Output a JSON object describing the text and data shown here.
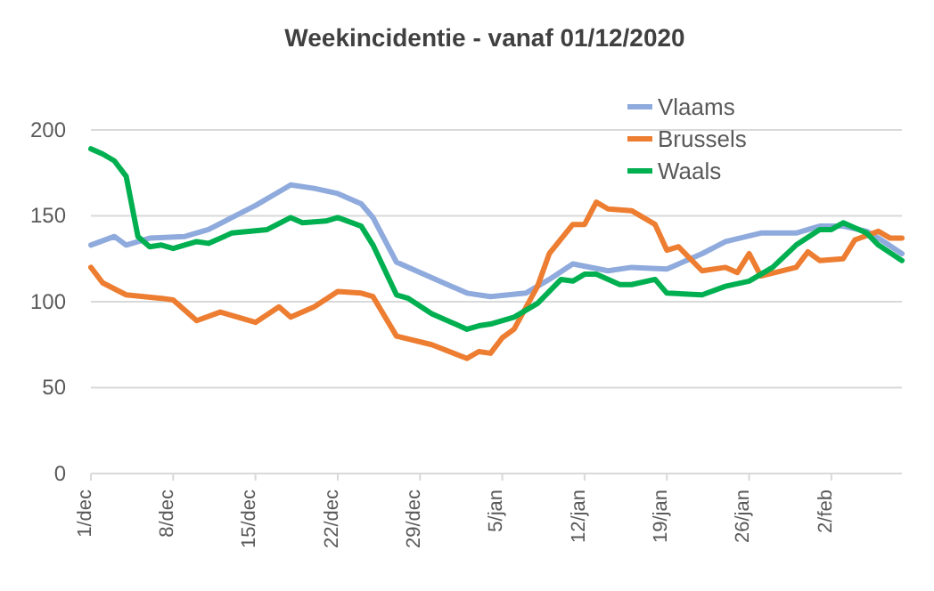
{
  "chart_data": {
    "type": "line",
    "title": "Weekincidentie  - vanaf 01/12/2020",
    "xlim": [
      "2020-12-01",
      "2021-02-08"
    ],
    "xticks": [
      {
        "value": "2020-12-01",
        "label": "1/dec"
      },
      {
        "value": "2020-12-08",
        "label": "8/dec"
      },
      {
        "value": "2020-12-15",
        "label": "15/dec"
      },
      {
        "value": "2020-12-22",
        "label": "22/dec"
      },
      {
        "value": "2020-12-29",
        "label": "29/dec"
      },
      {
        "value": "2021-01-05",
        "label": "5/jan"
      },
      {
        "value": "2021-01-12",
        "label": "12/jan"
      },
      {
        "value": "2021-01-19",
        "label": "19/jan"
      },
      {
        "value": "2021-01-26",
        "label": "26/jan"
      },
      {
        "value": "2021-02-02",
        "label": "2/feb"
      }
    ],
    "ylim": [
      0,
      200
    ],
    "yticks": [
      0,
      50,
      100,
      150,
      200
    ],
    "grid": "y",
    "legend": "top right",
    "marker": "none",
    "line_style": "solid",
    "series": [
      {
        "name": "Vlaams",
        "color": "#8faadc",
        "x": [
          "2020-12-01",
          "2020-12-03",
          "2020-12-04",
          "2020-12-06",
          "2020-12-09",
          "2020-12-11",
          "2020-12-13",
          "2020-12-15",
          "2020-12-17",
          "2020-12-18",
          "2020-12-20",
          "2020-12-22",
          "2020-12-24",
          "2020-12-25",
          "2020-12-27",
          "2020-12-30",
          "2021-01-02",
          "2021-01-04",
          "2021-01-07",
          "2021-01-09",
          "2021-01-11",
          "2021-01-14",
          "2021-01-16",
          "2021-01-19",
          "2021-01-22",
          "2021-01-24",
          "2021-01-27",
          "2021-01-30",
          "2021-02-01",
          "2021-02-03",
          "2021-02-05",
          "2021-02-06",
          "2021-02-08"
        ],
        "values": [
          133,
          138,
          133,
          137,
          138,
          142,
          149,
          156,
          164,
          168,
          166,
          163,
          157,
          149,
          123,
          114,
          105,
          103,
          105,
          113,
          122,
          118,
          120,
          119,
          128,
          135,
          140,
          140,
          144,
          144,
          141,
          137,
          128
        ]
      },
      {
        "name": "Brussels",
        "color": "#ed7d31",
        "x": [
          "2020-12-01",
          "2020-12-02",
          "2020-12-04",
          "2020-12-07",
          "2020-12-08",
          "2020-12-10",
          "2020-12-12",
          "2020-12-15",
          "2020-12-17",
          "2020-12-18",
          "2020-12-20",
          "2020-12-22",
          "2020-12-24",
          "2020-12-25",
          "2020-12-27",
          "2020-12-30",
          "2021-01-02",
          "2021-01-03",
          "2021-01-04",
          "2021-01-05",
          "2021-01-06",
          "2021-01-08",
          "2021-01-09",
          "2021-01-11",
          "2021-01-12",
          "2021-01-13",
          "2021-01-14",
          "2021-01-16",
          "2021-01-18",
          "2021-01-19",
          "2021-01-20",
          "2021-01-22",
          "2021-01-24",
          "2021-01-25",
          "2021-01-26",
          "2021-01-27",
          "2021-01-30",
          "2021-01-31",
          "2021-02-01",
          "2021-02-03",
          "2021-02-04",
          "2021-02-06",
          "2021-02-07",
          "2021-02-08"
        ],
        "values": [
          120,
          111,
          104,
          102,
          101,
          89,
          94,
          88,
          97,
          91,
          97,
          106,
          105,
          103,
          80,
          75,
          67,
          71,
          70,
          79,
          84,
          109,
          128,
          145,
          145,
          158,
          154,
          153,
          145,
          130,
          132,
          118,
          120,
          117,
          128,
          115,
          120,
          129,
          124,
          125,
          136,
          141,
          137,
          137
        ]
      },
      {
        "name": "Waals",
        "color": "#00b050",
        "x": [
          "2020-12-01",
          "2020-12-02",
          "2020-12-03",
          "2020-12-04",
          "2020-12-05",
          "2020-12-06",
          "2020-12-07",
          "2020-12-08",
          "2020-12-10",
          "2020-12-11",
          "2020-12-13",
          "2020-12-16",
          "2020-12-18",
          "2020-12-19",
          "2020-12-21",
          "2020-12-22",
          "2020-12-24",
          "2020-12-25",
          "2020-12-27",
          "2020-12-28",
          "2020-12-30",
          "2021-01-02",
          "2021-01-03",
          "2021-01-04",
          "2021-01-06",
          "2021-01-08",
          "2021-01-10",
          "2021-01-11",
          "2021-01-12",
          "2021-01-13",
          "2021-01-15",
          "2021-01-16",
          "2021-01-18",
          "2021-01-19",
          "2021-01-22",
          "2021-01-24",
          "2021-01-26",
          "2021-01-28",
          "2021-01-30",
          "2021-02-01",
          "2021-02-02",
          "2021-02-03",
          "2021-02-05",
          "2021-02-06",
          "2021-02-08"
        ],
        "values": [
          189,
          186,
          182,
          173,
          138,
          132,
          133,
          131,
          135,
          134,
          140,
          142,
          149,
          146,
          147,
          149,
          144,
          133,
          104,
          102,
          93,
          84,
          86,
          87,
          91,
          99,
          113,
          112,
          116,
          116,
          110,
          110,
          113,
          105,
          104,
          109,
          112,
          120,
          133,
          142,
          142,
          146,
          140,
          133,
          124
        ]
      }
    ]
  }
}
